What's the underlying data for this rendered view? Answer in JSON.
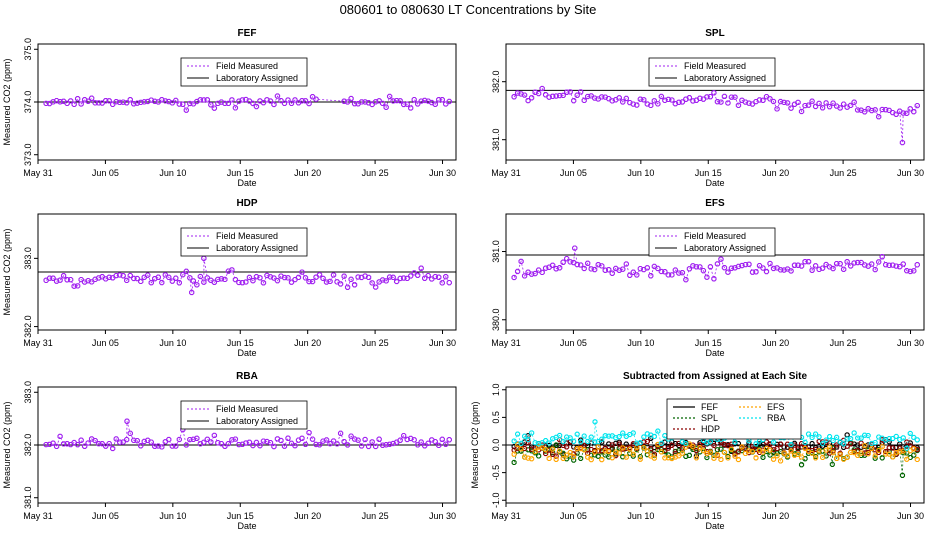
{
  "figure": {
    "title": "080601  to  080630 LT Concentrations by Site"
  },
  "colors": {
    "field": "#a020f0",
    "assigned": "#000000",
    "sites": {
      "FEF": "#000000",
      "SPL": "#006400",
      "HDP": "#8b0000",
      "EFS": "#ffa500",
      "RBA": "#00e5ee"
    }
  },
  "chart_data": [
    {
      "type": "scatter",
      "site": "FEF",
      "title": "FEF",
      "xlabel": "Date",
      "ylabel": "Measured CO2 (ppm)",
      "xlim": [
        0,
        31
      ],
      "ylim": [
        372.9,
        375.1
      ],
      "xticks": [
        "May 31",
        "Jun 05",
        "Jun 10",
        "Jun 15",
        "Jun 20",
        "Jun 25",
        "Jun 30"
      ],
      "yticks": [
        373.0,
        374.0,
        375.0
      ],
      "assigned": 374.0,
      "legend": [
        "Field Measured",
        "Laboratory Assigned"
      ],
      "legend_position": "top-center",
      "noise": 0.05,
      "noise_pos": 0.08,
      "noise_neg": 0.12,
      "gap": [
        20.8,
        22.7
      ],
      "pattern": [
        [
          0,
          0
        ],
        [
          22,
          0
        ],
        [
          22.7,
          0
        ],
        [
          31,
          0
        ]
      ]
    },
    {
      "type": "scatter",
      "site": "SPL",
      "title": "SPL",
      "xlabel": "Date",
      "ylabel": "",
      "xlim": [
        0,
        31
      ],
      "ylim": [
        380.65,
        382.65
      ],
      "xticks": [
        "May 31",
        "Jun 05",
        "Jun 10",
        "Jun 15",
        "Jun 20",
        "Jun 25",
        "Jun 30"
      ],
      "yticks": [
        381.0,
        382.0
      ],
      "assigned": 381.85,
      "legend": [
        "Field Measured",
        "Laboratory Assigned"
      ],
      "legend_position": "top-center",
      "noise": 0.06,
      "noise_pos": 0.1,
      "noise_neg": 0.1,
      "pattern": [
        [
          0,
          -0.05
        ],
        [
          10,
          -0.2
        ],
        [
          15,
          -0.15
        ],
        [
          24,
          -0.25
        ],
        [
          29,
          -0.4
        ],
        [
          31,
          -0.3
        ]
      ],
      "dips": [
        [
          29.4,
          380.95
        ]
      ]
    },
    {
      "type": "scatter",
      "site": "HDP",
      "title": "HDP",
      "xlabel": "Date",
      "ylabel": "Measured CO2 (ppm)",
      "xlim": [
        0,
        31
      ],
      "ylim": [
        381.95,
        383.65
      ],
      "xticks": [
        "May 31",
        "Jun 05",
        "Jun 10",
        "Jun 15",
        "Jun 20",
        "Jun 25",
        "Jun 30"
      ],
      "yticks": [
        382.0,
        383.0
      ],
      "assigned": 382.8,
      "legend": [
        "Field Measured",
        "Laboratory Assigned"
      ],
      "legend_position": "top-center",
      "noise": 0.06,
      "noise_pos": 0.14,
      "noise_neg": 0.14,
      "pattern": [
        [
          0,
          -0.1
        ],
        [
          31,
          -0.1
        ]
      ],
      "dips": [
        [
          12.3,
          383.0
        ],
        [
          11.4,
          382.5
        ]
      ]
    },
    {
      "type": "scatter",
      "site": "EFS",
      "title": "EFS",
      "xlabel": "Date",
      "ylabel": "",
      "xlim": [
        0,
        31
      ],
      "ylim": [
        379.85,
        381.55
      ],
      "xticks": [
        "May 31",
        "Jun 05",
        "Jun 10",
        "Jun 15",
        "Jun 20",
        "Jun 25",
        "Jun 30"
      ],
      "yticks": [
        380.0,
        381.0
      ],
      "assigned": 380.95,
      "legend": [
        "Field Measured",
        "Laboratory Assigned"
      ],
      "legend_position": "top-center",
      "noise": 0.07,
      "noise_pos": 0.12,
      "noise_neg": 0.12,
      "pattern": [
        [
          0,
          -0.3
        ],
        [
          5,
          -0.1
        ],
        [
          9,
          -0.25
        ],
        [
          15,
          -0.2
        ],
        [
          25,
          -0.15
        ],
        [
          31,
          -0.2
        ]
      ],
      "dips": [
        [
          5.1,
          381.05
        ]
      ]
    },
    {
      "type": "scatter",
      "site": "RBA",
      "title": "RBA",
      "xlabel": "Date",
      "ylabel": "Measured CO2 (ppm)",
      "xlim": [
        0,
        31
      ],
      "ylim": [
        380.9,
        383.1
      ],
      "xticks": [
        "May 31",
        "Jun 05",
        "Jun 10",
        "Jun 15",
        "Jun 20",
        "Jun 25",
        "Jun 30"
      ],
      "yticks": [
        381.0,
        382.0,
        383.0
      ],
      "assigned": 382.0,
      "legend": [
        "Field Measured",
        "Laboratory Assigned"
      ],
      "legend_position": "top-center",
      "noise": 0.08,
      "noise_pos": 0.2,
      "noise_neg": 0.12,
      "pattern": [
        [
          0,
          0.05
        ],
        [
          31,
          0.05
        ]
      ],
      "dips": [
        [
          6.6,
          382.45
        ]
      ]
    },
    {
      "type": "scatter",
      "site": "ALL",
      "title": "Subtracted from Assigned at Each Site",
      "xlabel": "Date",
      "ylabel": "Measured CO2 (ppm)",
      "xlim": [
        0,
        31
      ],
      "ylim": [
        -1.05,
        1.05
      ],
      "xticks": [
        "May 31",
        "Jun 05",
        "Jun 10",
        "Jun 15",
        "Jun 20",
        "Jun 25",
        "Jun 30"
      ],
      "yticks": [
        -1.0,
        -0.5,
        0.0,
        0.5,
        1.0
      ],
      "zero_line": 0.0,
      "legend": [
        "FEF",
        "SPL",
        "HDP",
        "EFS",
        "RBA"
      ],
      "legend_position": "top-center",
      "series": [
        {
          "name": "FEF",
          "color": "#000000",
          "base": 0.0,
          "noise": 0.06
        },
        {
          "name": "SPL",
          "color": "#006400",
          "base": -0.15,
          "noise": 0.1
        },
        {
          "name": "HDP",
          "color": "#8b0000",
          "base": -0.05,
          "noise": 0.12
        },
        {
          "name": "EFS",
          "color": "#ffa500",
          "base": -0.15,
          "noise": 0.12
        },
        {
          "name": "RBA",
          "color": "#00e5ee",
          "base": 0.12,
          "noise": 0.1
        }
      ]
    }
  ]
}
